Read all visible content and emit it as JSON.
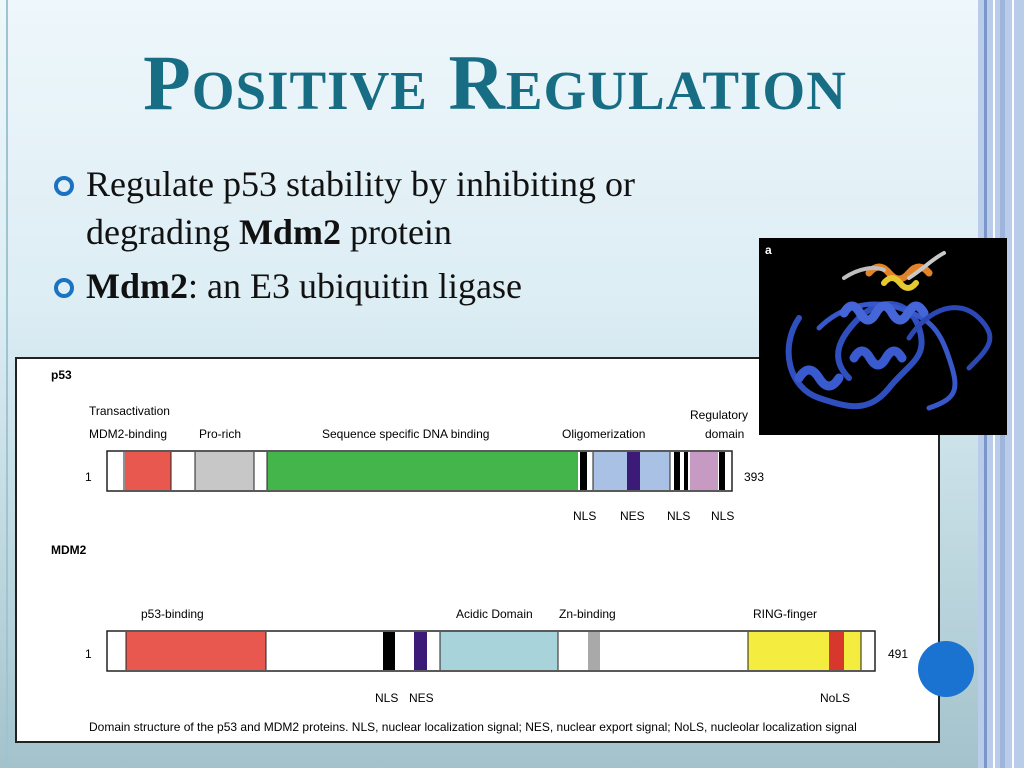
{
  "slide": {
    "title": "Positive Regulation",
    "bullets": [
      {
        "pre": "Regulate p53 stability by inhibiting or degrading ",
        "bold": "Mdm2",
        "post": " protein"
      },
      {
        "pre": "",
        "bold": "Mdm2",
        "post": ": an E3 ubiquitin ligase"
      }
    ]
  },
  "figure": {
    "p53": {
      "name": "p53",
      "start": "1",
      "end": "393",
      "labels": {
        "transactivation": "Transactivation",
        "mdm2_binding": "MDM2-binding",
        "pro_rich": "Pro-rich",
        "dna_binding": "Sequence specific DNA binding",
        "oligomerization": "Oligomerization",
        "regulatory": "Regulatory",
        "domain": "domain"
      },
      "signals": [
        "NLS",
        "NES",
        "NLS",
        "NLS"
      ],
      "colors": {
        "mdm2": "#e8584e",
        "pro": "#c7c7c7",
        "dna": "#43b54a",
        "olig": "#a9c1e4",
        "nes": "#3b1a78",
        "reg": "#c79ac4"
      }
    },
    "mdm2": {
      "name": "MDM2",
      "start": "1",
      "end": "491",
      "labels": {
        "p53_binding": "p53-binding",
        "acidic": "Acidic Domain",
        "zn": "Zn-binding",
        "ring": "RING-finger"
      },
      "signals": [
        "NLS",
        "NES",
        "NoLS"
      ],
      "colors": {
        "p53": "#e8584e",
        "acidic": "#a8d3da",
        "zn": "#a9a9a9",
        "ring": "#f4ec3f",
        "nols": "#d8382c",
        "nes": "#3b1a78"
      }
    },
    "caption": "Domain structure of the p53 and MDM2 proteins. NLS, nuclear localization signal; NES, nuclear export signal; NoLS, nucleolar localization signal"
  },
  "protein_image": {
    "panel_label": "a"
  }
}
